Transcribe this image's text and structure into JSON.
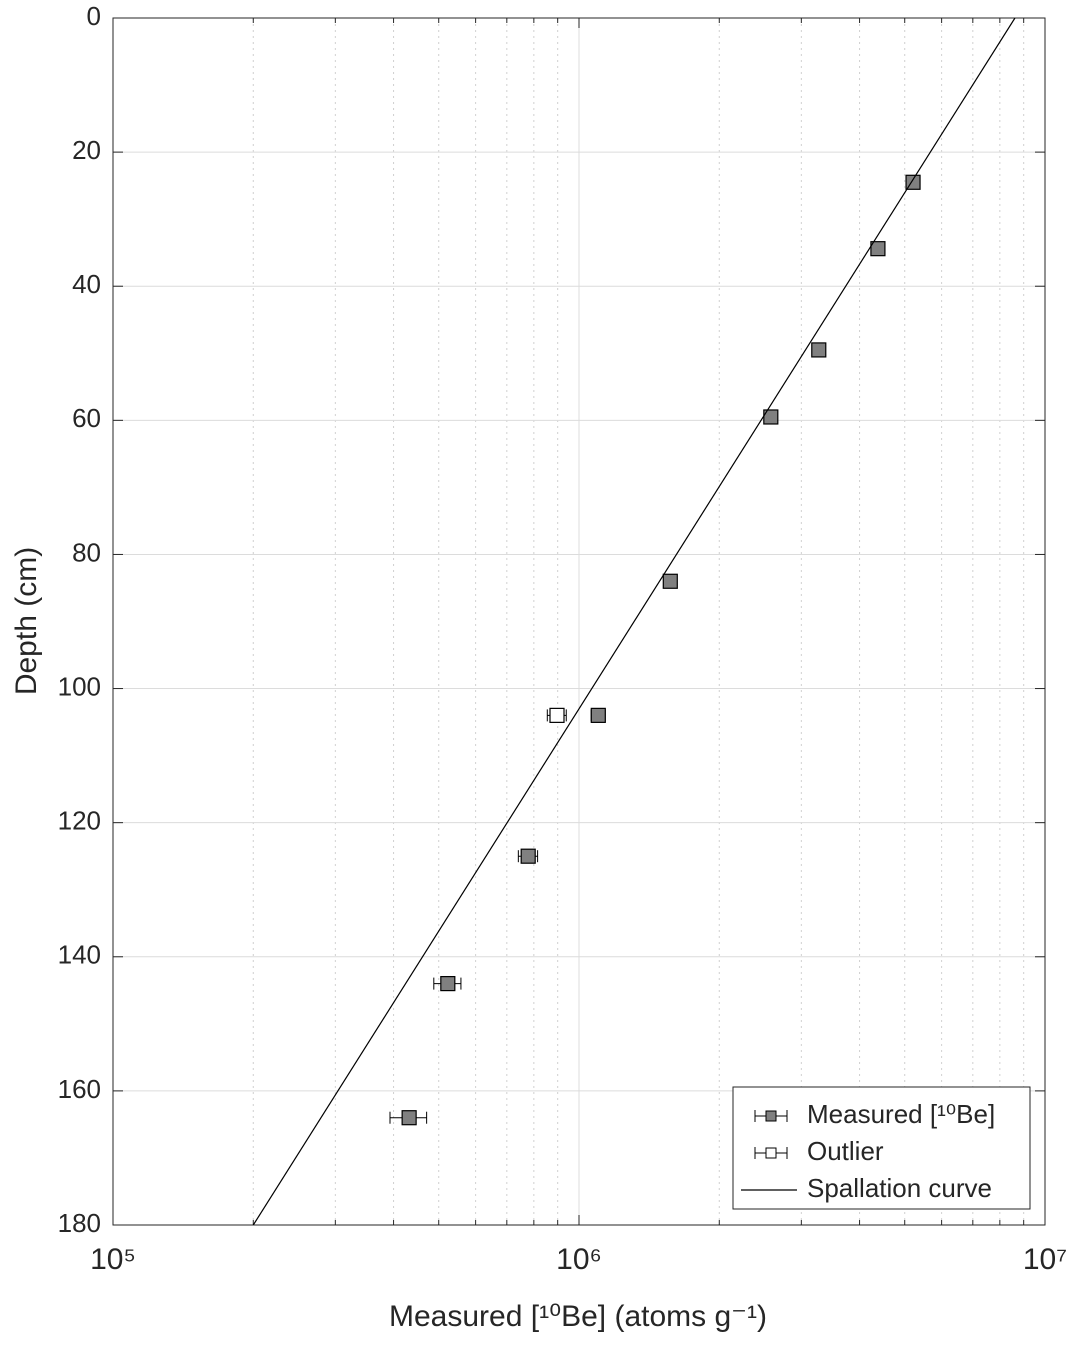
{
  "chart_data": {
    "type": "scatter",
    "xlabel": "Measured [¹⁰Be] (atoms g⁻¹)",
    "ylabel": "Depth (cm)",
    "xscale": "log",
    "yreversed": true,
    "xlim": [
      100000,
      10000000
    ],
    "ylim": [
      0,
      180
    ],
    "xticks": [
      {
        "value": 100000,
        "label": "10⁵"
      },
      {
        "value": 1000000,
        "label": "10⁶"
      },
      {
        "value": 10000000,
        "label": "10⁷"
      }
    ],
    "xminorticks": [
      200000,
      300000,
      400000,
      500000,
      600000,
      700000,
      800000,
      900000,
      2000000,
      3000000,
      4000000,
      5000000,
      6000000,
      7000000,
      8000000,
      9000000
    ],
    "yticks": [
      0,
      20,
      40,
      60,
      80,
      100,
      120,
      140,
      160,
      180
    ],
    "grid": true,
    "legend": "lower right",
    "series": [
      {
        "name": "Measured [¹⁰Be]",
        "kind": "points",
        "color": "#808080",
        "x": [
          5210000,
          4380000,
          3270000,
          2580000,
          1570000,
          1100000,
          778000,
          523000,
          432000
        ],
        "y": [
          24.5,
          34.4,
          49.5,
          59.5,
          84,
          104,
          125,
          144,
          164
        ],
        "xerr": [
          60000,
          50000,
          40000,
          35000,
          30000,
          38000,
          37000,
          35000,
          39000
        ]
      },
      {
        "name": "Outlier",
        "kind": "points",
        "color": "#ffffff",
        "x": [
          897000
        ],
        "y": [
          104
        ],
        "xerr": [
          42000
        ]
      },
      {
        "name": "Spallation curve",
        "kind": "line",
        "color": "#000000",
        "x": [
          8620000,
          200000
        ],
        "y": [
          0,
          180
        ]
      }
    ]
  }
}
